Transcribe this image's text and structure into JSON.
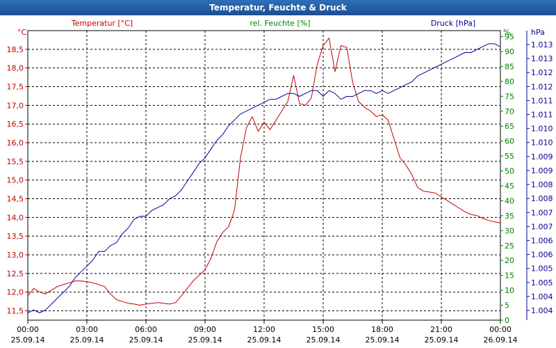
{
  "window": {
    "title": "Temperatur, Feuchte & Druck"
  },
  "chart_data": {
    "type": "line",
    "title": "Temperatur, Feuchte & Druck",
    "x_ticks": [
      {
        "time": "00:00",
        "date": "25.09.14"
      },
      {
        "time": "03:00",
        "date": "25.09.14"
      },
      {
        "time": "06:00",
        "date": "25.09.14"
      },
      {
        "time": "09:00",
        "date": "25.09.14"
      },
      {
        "time": "12:00",
        "date": "25.09.14"
      },
      {
        "time": "15:00",
        "date": "25.09.14"
      },
      {
        "time": "18:00",
        "date": "25.09.14"
      },
      {
        "time": "21:00",
        "date": "25.09.14"
      },
      {
        "time": "00:00",
        "date": "26.09.14"
      }
    ],
    "xlim_hours": [
      0,
      24
    ],
    "axes": {
      "temperature": {
        "label": "Temperatur [°C]",
        "unit": "°C",
        "color": "#c00000",
        "ylim": [
          11.25,
          19.0
        ],
        "ticks": [
          "11,5",
          "12,0",
          "12,5",
          "13,0",
          "13,5",
          "14,0",
          "14,5",
          "15,0",
          "15,5",
          "16,0",
          "16,5",
          "17,0",
          "17,5",
          "18,0",
          "18,5"
        ]
      },
      "humidity": {
        "label": "rel. Feuchte [%]",
        "unit": "%",
        "color": "#008000",
        "ylim": [
          0,
          97
        ],
        "ticks": [
          "0",
          "5",
          "10",
          "15",
          "20",
          "25",
          "30",
          "35",
          "40",
          "45",
          "50",
          "55",
          "60",
          "65",
          "70",
          "75",
          "80",
          "85",
          "90",
          "95"
        ]
      },
      "pressure": {
        "label": "Druck [hPa]",
        "unit": "hPa",
        "color": "#000099",
        "ylim": [
          1.00345,
          1.01335
        ],
        "ticks": [
          "1.004",
          "1.004",
          "1.005",
          "1.005",
          "1.006",
          "1.006",
          "1.007",
          "1.007",
          "1.008",
          "1.008",
          "1.009",
          "1.009",
          "1.010",
          "1.010",
          "1.011",
          "1.011",
          "1.012",
          "1.012",
          "1.013",
          "1.013"
        ]
      }
    },
    "series": [
      {
        "name": "Temperatur",
        "axis": "temperature",
        "color": "#c00000",
        "x": [
          0,
          0.3,
          0.6,
          0.9,
          1.2,
          1.5,
          1.8,
          2.1,
          2.4,
          2.7,
          3.0,
          3.3,
          3.6,
          3.9,
          4.2,
          4.5,
          4.8,
          5.1,
          5.4,
          5.7,
          6.0,
          6.3,
          6.6,
          6.9,
          7.2,
          7.5,
          7.8,
          8.1,
          8.4,
          8.7,
          9.0,
          9.3,
          9.6,
          9.9,
          10.2,
          10.5,
          10.8,
          11.1,
          11.4,
          11.7,
          12.0,
          12.3,
          12.6,
          12.9,
          13.2,
          13.5,
          13.8,
          14.1,
          14.4,
          14.7,
          15.0,
          15.3,
          15.6,
          15.9,
          16.2,
          16.5,
          16.8,
          17.1,
          17.4,
          17.7,
          18.0,
          18.3,
          18.6,
          18.9,
          19.2,
          19.5,
          19.8,
          20.1,
          20.4,
          20.7,
          21.0,
          21.3,
          21.6,
          21.9,
          22.2,
          22.5,
          22.8,
          23.1,
          23.4,
          23.7,
          24.0
        ],
        "values": [
          11.9,
          12.1,
          12.0,
          11.95,
          12.05,
          12.15,
          12.2,
          12.25,
          12.3,
          12.3,
          12.28,
          12.25,
          12.2,
          12.15,
          11.95,
          11.8,
          11.75,
          11.7,
          11.68,
          11.65,
          11.68,
          11.7,
          11.72,
          11.7,
          11.68,
          11.72,
          11.9,
          12.1,
          12.3,
          12.45,
          12.6,
          12.9,
          13.35,
          13.6,
          13.75,
          14.2,
          15.6,
          16.4,
          16.7,
          16.3,
          16.55,
          16.35,
          16.6,
          16.85,
          17.1,
          17.8,
          17.05,
          17.0,
          17.2,
          18.1,
          18.6,
          18.8,
          17.9,
          18.6,
          18.55,
          17.6,
          17.1,
          16.95,
          16.85,
          16.7,
          16.75,
          16.6,
          16.1,
          15.6,
          15.4,
          15.15,
          14.8,
          14.7,
          14.68,
          14.65,
          14.55,
          14.45,
          14.35,
          14.25,
          14.15,
          14.08,
          14.05,
          13.98,
          13.92,
          13.88,
          13.85
        ]
      },
      {
        "name": "Druck",
        "axis": "pressure",
        "color": "#000099",
        "x": [
          0,
          0.3,
          0.6,
          0.9,
          1.2,
          1.5,
          1.8,
          2.1,
          2.4,
          2.7,
          3.0,
          3.3,
          3.6,
          3.9,
          4.2,
          4.5,
          4.8,
          5.1,
          5.4,
          5.7,
          6.0,
          6.3,
          6.6,
          6.9,
          7.2,
          7.5,
          7.8,
          8.1,
          8.4,
          8.7,
          9.0,
          9.3,
          9.6,
          9.9,
          10.2,
          10.5,
          10.8,
          11.1,
          11.4,
          11.7,
          12.0,
          12.3,
          12.6,
          12.9,
          13.2,
          13.5,
          13.8,
          14.1,
          14.4,
          14.7,
          15.0,
          15.3,
          15.6,
          15.9,
          16.2,
          16.5,
          16.8,
          17.1,
          17.4,
          17.7,
          18.0,
          18.3,
          18.6,
          18.9,
          19.2,
          19.5,
          19.8,
          20.1,
          20.4,
          20.7,
          21.0,
          21.3,
          21.6,
          21.9,
          22.2,
          22.5,
          22.8,
          23.1,
          23.4,
          23.7,
          24.0
        ],
        "values": [
          1.0037,
          1.0038,
          1.0037,
          1.0038,
          1.004,
          1.0042,
          1.0044,
          1.0046,
          1.0049,
          1.0051,
          1.0053,
          1.0055,
          1.0058,
          1.0058,
          1.006,
          1.0061,
          1.0064,
          1.0066,
          1.0069,
          1.007,
          1.007,
          1.0072,
          1.0073,
          1.0074,
          1.0076,
          1.0077,
          1.0079,
          1.0082,
          1.0085,
          1.0088,
          1.009,
          1.0093,
          1.0096,
          1.0098,
          1.0101,
          1.0103,
          1.0105,
          1.0106,
          1.0107,
          1.0108,
          1.0109,
          1.011,
          1.011,
          1.0111,
          1.0112,
          1.0112,
          1.0111,
          1.0112,
          1.0113,
          1.0113,
          1.0111,
          1.0113,
          1.0112,
          1.011,
          1.0111,
          1.0111,
          1.0112,
          1.0113,
          1.0113,
          1.0112,
          1.0113,
          1.0112,
          1.0113,
          1.0114,
          1.0115,
          1.0116,
          1.0118,
          1.0119,
          1.012,
          1.0121,
          1.0122,
          1.0123,
          1.0124,
          1.0125,
          1.0126,
          1.0126,
          1.0127,
          1.0128,
          1.0129,
          1.0129,
          1.0128
        ]
      }
    ]
  }
}
